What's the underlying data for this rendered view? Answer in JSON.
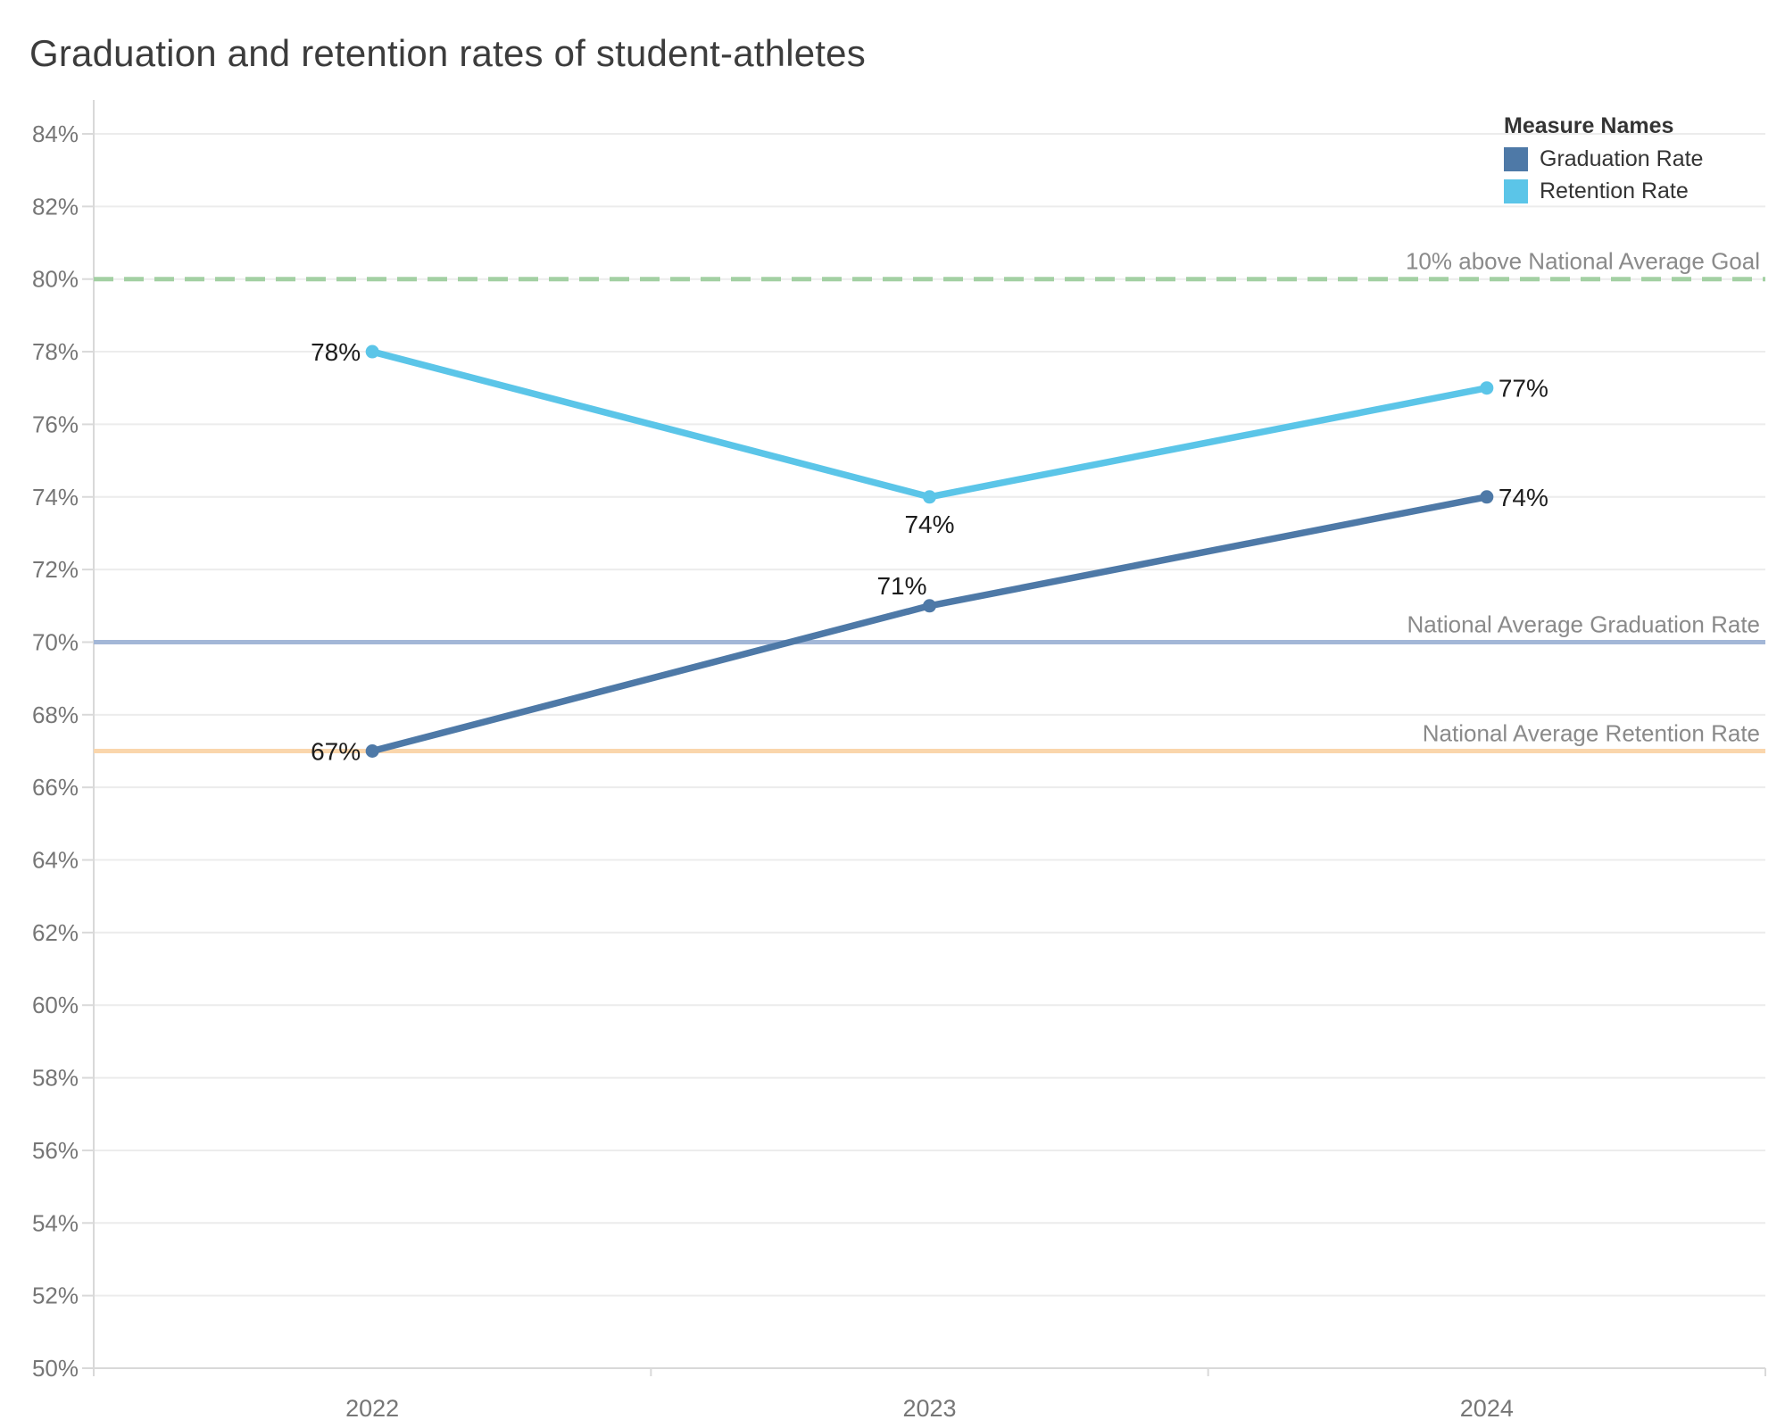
{
  "title": "Graduation and retention rates of student-athletes",
  "legend": {
    "title": "Measure Names"
  },
  "chart_data": {
    "type": "line",
    "x": [
      "2022",
      "2023",
      "2024"
    ],
    "series": [
      {
        "name": "Graduation Rate",
        "color": "#4e79a7",
        "values": [
          67,
          71,
          74
        ],
        "point_labels": [
          {
            "text": "67%",
            "placement": "left"
          },
          {
            "text": "71%",
            "placement": "above-left"
          },
          {
            "text": "74%",
            "placement": "right"
          }
        ]
      },
      {
        "name": "Retention Rate",
        "color": "#5bc5e8",
        "values": [
          78,
          74,
          77
        ],
        "point_labels": [
          {
            "text": "78%",
            "placement": "left"
          },
          {
            "text": "74%",
            "placement": "below"
          },
          {
            "text": "77%",
            "placement": "right"
          }
        ]
      }
    ],
    "reference_lines": [
      {
        "label": "10% above National Average Goal",
        "value": 80,
        "color": "#a3d0a3",
        "style": "dashed"
      },
      {
        "label": "National Average Graduation Rate",
        "value": 70,
        "color": "#a3b7d7",
        "style": "solid"
      },
      {
        "label": "National Average Retention Rate",
        "value": 67,
        "color": "#fad6ac",
        "style": "solid"
      }
    ],
    "ylim": [
      50,
      84
    ],
    "y_tick_step": 2,
    "y_tick_labels": [
      "50%",
      "52%",
      "54%",
      "56%",
      "58%",
      "60%",
      "62%",
      "64%",
      "66%",
      "68%",
      "70%",
      "72%",
      "74%",
      "76%",
      "78%",
      "80%",
      "82%",
      "84%"
    ],
    "x_tick_labels": [
      "2022",
      "2023",
      "2024"
    ],
    "grid": "horizontal",
    "legend_position": "top-right",
    "title": "Graduation and retention rates of student-athletes",
    "xlabel": "",
    "ylabel": ""
  },
  "colors": {
    "background": "#ffffff",
    "title_text": "#3c3c3c",
    "axis_text": "#767676",
    "gridline": "#ececec",
    "axis_line": "#d9d9d9",
    "data_label": "#1c1c1c",
    "ref_label": "#8a8a8a"
  }
}
